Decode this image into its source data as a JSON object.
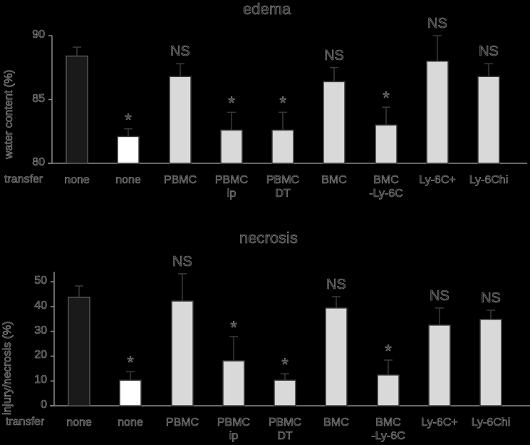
{
  "chart_data": [
    {
      "type": "bar",
      "title": "edema",
      "ylabel": "water content (%)",
      "xlabel": "transfer",
      "ylim": [
        80,
        90
      ],
      "yticks": [
        80,
        85,
        90
      ],
      "categories": [
        "none",
        "none",
        "PBMC",
        "PBMC\nip",
        "PBMC\nDT",
        "BMC",
        "BMC\n-Ly-6C",
        "Ly-6C+",
        "Ly-6Chi"
      ],
      "values": [
        88.4,
        82.1,
        86.8,
        82.6,
        82.6,
        86.4,
        83.0,
        88.0,
        86.8
      ],
      "error_upper": [
        89.1,
        82.7,
        87.8,
        84.0,
        84.0,
        87.5,
        84.4,
        90.0,
        87.8
      ],
      "bar_colors": [
        "#1a1a1a",
        "#ffffff",
        "#d9d9d9",
        "#d9d9d9",
        "#d9d9d9",
        "#d9d9d9",
        "#d9d9d9",
        "#d9d9d9",
        "#d9d9d9"
      ],
      "annotations": [
        "",
        "*",
        "NS",
        "*",
        "*",
        "NS",
        "*",
        "NS",
        "NS"
      ],
      "grid": false,
      "legend": null
    },
    {
      "type": "bar",
      "title": "necrosis",
      "ylabel": "injury/necrosis (%)",
      "xlabel": "transfer",
      "ylim": [
        0,
        50
      ],
      "yticks": [
        0,
        10,
        20,
        30,
        40,
        50
      ],
      "categories": [
        "none",
        "none",
        "PBMC",
        "PBMC\nip",
        "PBMC\nDT",
        "BMC",
        "BMC\n-Ly-6C",
        "Ly-6C+",
        "Ly-6Chi"
      ],
      "values": [
        43.7,
        10.3,
        42.2,
        18.1,
        10.3,
        39.4,
        12.4,
        32.5,
        34.8
      ],
      "error_upper": [
        48.3,
        13.8,
        53.2,
        27.9,
        12.9,
        44.0,
        18.4,
        39.4,
        38.5
      ],
      "bar_colors": [
        "#1a1a1a",
        "#ffffff",
        "#d9d9d9",
        "#d9d9d9",
        "#d9d9d9",
        "#d9d9d9",
        "#d9d9d9",
        "#d9d9d9",
        "#d9d9d9"
      ],
      "annotations": [
        "",
        "*",
        "NS",
        "*",
        "*",
        "NS",
        "*",
        "NS",
        "NS"
      ],
      "grid": false,
      "legend": null
    }
  ],
  "labels": {
    "top_title": "edema",
    "top_ylabel": "water content (%)",
    "bottom_title": "necrosis",
    "bottom_ylabel": "injury/necrosis (%)",
    "transfer": "transfer"
  }
}
